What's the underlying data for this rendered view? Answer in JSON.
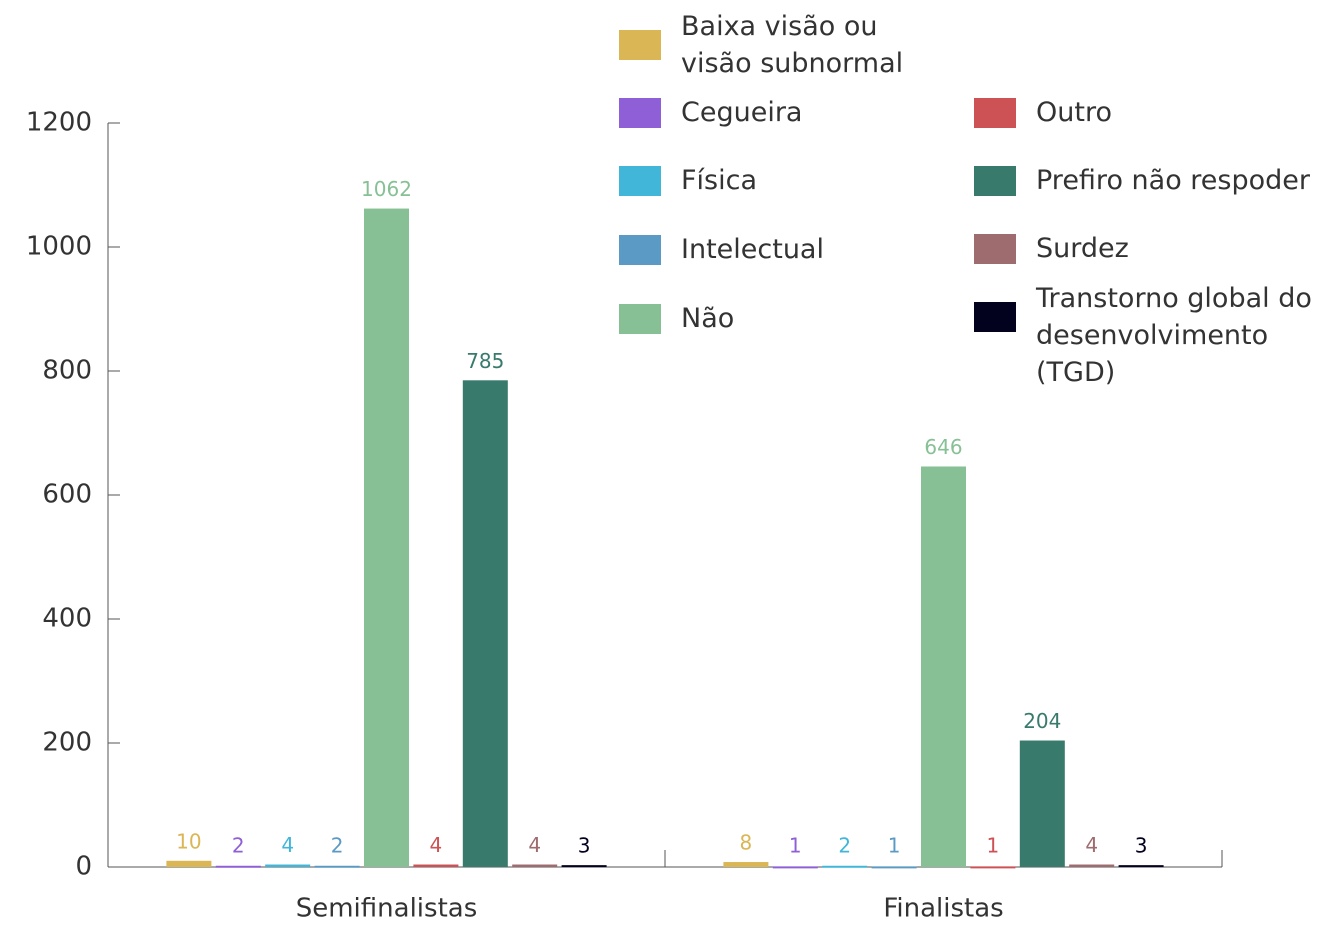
{
  "chart_data": {
    "type": "bar",
    "categories": [
      "Semifinalistas",
      "Finalistas"
    ],
    "series": [
      {
        "name": "Baixa visão ou visão subnormal",
        "color": "#dbb655",
        "values": [
          10,
          8
        ]
      },
      {
        "name": "Cegueira",
        "color": "#8e5fd6",
        "values": [
          2,
          1
        ]
      },
      {
        "name": "Física",
        "color": "#41b6d9",
        "values": [
          4,
          2
        ]
      },
      {
        "name": "Intelectual",
        "color": "#5a9ac4",
        "values": [
          2,
          1
        ]
      },
      {
        "name": "Não",
        "color": "#88c096",
        "values": [
          1062,
          646
        ]
      },
      {
        "name": "Outro",
        "color": "#cc5256",
        "values": [
          4,
          1
        ]
      },
      {
        "name": "Prefiro não respoder",
        "color": "#387a6c",
        "values": [
          785,
          204
        ]
      },
      {
        "name": "Surdez",
        "color": "#9e6b6e",
        "values": [
          4,
          4
        ]
      },
      {
        "name": "Transtorno global do desenvolvimento (TGD)",
        "color": "#03021e",
        "values": [
          3,
          3
        ]
      }
    ],
    "ylim": [
      0,
      1200
    ],
    "yticks": [
      0,
      200,
      400,
      600,
      800,
      1000,
      1200
    ],
    "grid": false,
    "legend": "top-right"
  }
}
